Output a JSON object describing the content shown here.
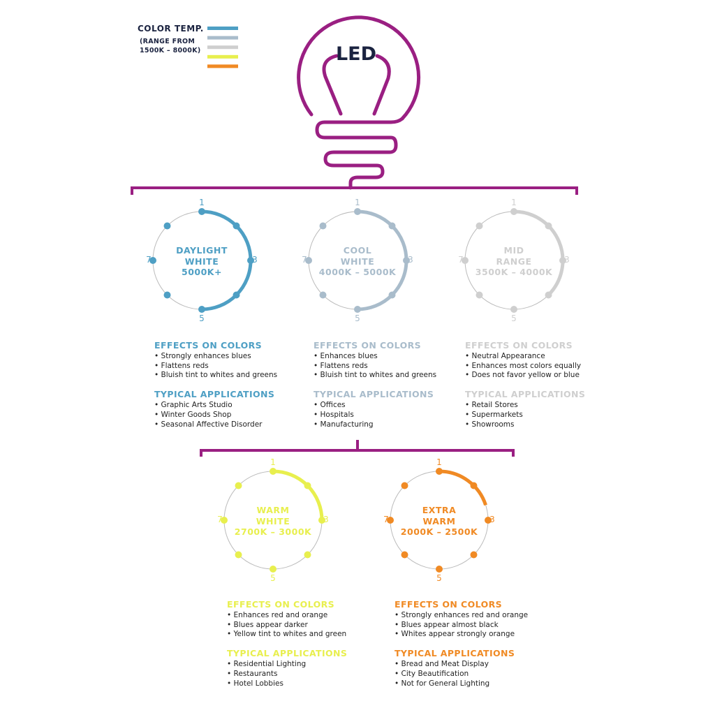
{
  "legend": {
    "title": "COLOR TEMP.",
    "subtitle_line1": "(RANGE FROM",
    "subtitle_line2": "1500K – 8000K)",
    "swatches": [
      "#4e9fc4",
      "#a9bccb",
      "#cfcfcf",
      "#e8ef4e",
      "#f08a24"
    ]
  },
  "bulb": {
    "label": "LED",
    "color": "#9a1f82",
    "label_color": "#1b2340"
  },
  "dial_labels": [
    "1",
    "3",
    "5",
    "7"
  ],
  "categories": [
    {
      "id": "daylight",
      "color": "#4e9fc4",
      "title": [
        "DAYLIGHT",
        "WHITE",
        "5000K+"
      ],
      "arc_end_position": 5,
      "effects_heading": "EFFECTS ON COLORS",
      "effects": [
        "Strongly enhances blues",
        "Flattens reds",
        "Bluish tint to whites and greens"
      ],
      "apps_heading": "TYPICAL APPLICATIONS",
      "apps": [
        "Graphic Arts Studio",
        "Winter Goods Shop",
        "Seasonal Affective Disorder"
      ]
    },
    {
      "id": "cool",
      "color": "#a9bccb",
      "title": [
        "COOL",
        "WHITE",
        "4000K – 5000K"
      ],
      "arc_end_position": 5,
      "effects_heading": "EFFECTS ON COLORS",
      "effects": [
        "Enhances blues",
        "Flattens reds",
        "Bluish tint to whites and greens"
      ],
      "apps_heading": "TYPICAL APPLICATIONS",
      "apps": [
        "Offices",
        "Hospitals",
        "Manufacturing"
      ]
    },
    {
      "id": "mid",
      "color": "#cfcfcf",
      "title": [
        "MID",
        "RANGE",
        "3500K – 4000K"
      ],
      "arc_end_position": 4,
      "effects_heading": "EFFECTS ON COLORS",
      "effects": [
        "Neutral Appearance",
        "Enhances most colors equally",
        "Does not favor yellow or blue"
      ],
      "apps_heading": "TYPICAL APPLICATIONS",
      "apps": [
        "Retail Stores",
        "Supermarkets",
        "Showrooms"
      ]
    },
    {
      "id": "warm",
      "color": "#e8ef4e",
      "title": [
        "WARM",
        "WHITE",
        "2700K – 3000K"
      ],
      "arc_end_position": 3,
      "effects_heading": "EFFECTS ON COLORS",
      "effects": [
        "Enhances red and orange",
        "Blues appear darker",
        "Yellow tint to whites and green"
      ],
      "apps_heading": "TYPICAL APPLICATIONS",
      "apps": [
        "Residential Lighting",
        "Restaurants",
        "Hotel Lobbies"
      ]
    },
    {
      "id": "extra",
      "color": "#f08a24",
      "title": [
        "EXTRA",
        "WARM",
        "2000K – 2500K"
      ],
      "arc_end_position": 2.6,
      "effects_heading": "EFFECTS ON COLORS",
      "effects": [
        "Strongly enhances red and orange",
        "Blues appear almost black",
        "Whites appear strongly orange"
      ],
      "apps_heading": "TYPICAL APPLICATIONS",
      "apps": [
        "Bread and Meat Display",
        "City Beautification",
        "Not for General Lighting"
      ]
    }
  ]
}
